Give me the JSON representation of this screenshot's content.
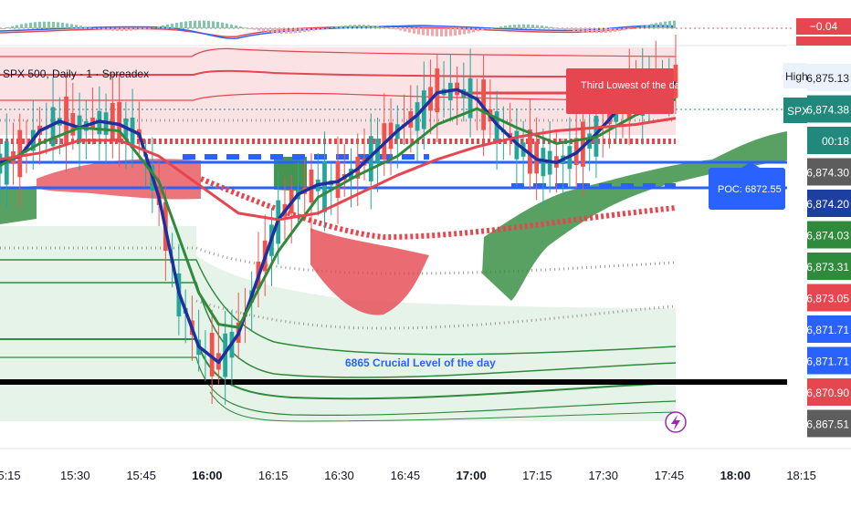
{
  "header": {
    "symbol_title": "SPX 500, Daily · 1 · Spreadex",
    "ticker_tag": "SPX",
    "high_tag": "High"
  },
  "indicator_value": "−0.04",
  "chart_data": {
    "type": "line",
    "title": "SPX 500, Daily · 1 · Spreadex",
    "xlabel": "",
    "ylabel": "",
    "x_ticks": [
      "5:15",
      "15:30",
      "15:45",
      "16:00",
      "16:15",
      "16:30",
      "16:45",
      "17:00",
      "17:15",
      "17:30",
      "17:45",
      "18:00",
      "18:15"
    ],
    "x_ticks_bold": [
      "16:00",
      "17:00",
      "18:00"
    ],
    "price_labels": [
      {
        "text": "6,875.13",
        "bg": "#eaf3fb",
        "fg": "#222222"
      },
      {
        "text": "6,874.38",
        "bg": "#21897b",
        "fg": "#ffffff"
      },
      {
        "text": "00:18",
        "bg": "#21897b",
        "fg": "#ffffff"
      },
      {
        "text": "6,874.30",
        "bg": "#5d5d5d",
        "fg": "#ffffff"
      },
      {
        "text": "6,874.20",
        "bg": "#1d3fa0",
        "fg": "#ffffff"
      },
      {
        "text": "6,874.03",
        "bg": "#2f8a3c",
        "fg": "#ffffff"
      },
      {
        "text": "6,873.31",
        "bg": "#2f8a3c",
        "fg": "#ffffff"
      },
      {
        "text": "6,873.05",
        "bg": "#e5464f",
        "fg": "#ffffff"
      },
      {
        "text": "6,871.71",
        "bg": "#2962ff",
        "fg": "#ffffff"
      },
      {
        "text": "6,871.71",
        "bg": "#2962ff",
        "fg": "#ffffff"
      },
      {
        "text": "6,870.90",
        "bg": "#e5464f",
        "fg": "#ffffff"
      },
      {
        "text": "6,867.51",
        "bg": "#5d5d5d",
        "fg": "#ffffff"
      }
    ],
    "annotations": {
      "third_lowest": "Third Lowest of the day",
      "poc": "POC: 6872.55",
      "crucial_level": "6865 Crucial Level of the day"
    },
    "series": [
      {
        "name": "",
        "color": "#1e2f9e",
        "x": [
          0,
          3,
          6,
          9,
          12,
          15,
          18,
          21,
          24,
          27,
          30,
          33,
          36,
          39,
          42,
          45,
          48,
          51,
          54,
          57,
          60,
          63,
          66,
          69,
          72,
          75,
          78,
          81,
          84,
          87,
          90,
          93,
          96,
          99,
          102
        ],
        "y": [
          6872.6,
          6872.8,
          6873.6,
          6873.9,
          6873.7,
          6873.9,
          6873.8,
          6873.5,
          6871.5,
          6868.5,
          6866.8,
          6866.3,
          6867.2,
          6869.0,
          6870.8,
          6871.6,
          6871.9,
          6872.0,
          6872.4,
          6873.0,
          6873.6,
          6874.1,
          6874.8,
          6874.9,
          6874.6,
          6873.8,
          6873.2,
          6872.7,
          6872.6,
          6872.9,
          6873.5,
          6874.2,
          6874.8,
          6875.1,
          6875.1
        ]
      },
      {
        "name": "",
        "color": "#2f8a3c",
        "x": [
          0,
          6,
          12,
          18,
          24,
          30,
          33,
          36,
          42,
          48,
          54,
          60,
          66,
          72,
          75,
          78,
          84,
          90,
          96,
          102
        ],
        "y": [
          6872.5,
          6873.2,
          6873.7,
          6873.6,
          6872.0,
          6868.5,
          6867.5,
          6867.4,
          6869.8,
          6871.5,
          6872.2,
          6872.8,
          6873.8,
          6874.3,
          6874.0,
          6873.7,
          6873.2,
          6873.4,
          6874.1,
          6874.6
        ]
      },
      {
        "name": "",
        "color": "#e5464f",
        "x": [
          0,
          6,
          12,
          18,
          24,
          30,
          36,
          42,
          48,
          54,
          60,
          66,
          72,
          78,
          84,
          90,
          96,
          102
        ],
        "y": [
          6872.7,
          6872.9,
          6873.3,
          6873.3,
          6872.8,
          6871.9,
          6871.0,
          6870.8,
          6871.0,
          6871.6,
          6872.2,
          6872.7,
          6873.1,
          6873.4,
          6873.6,
          6873.7,
          6873.8,
          6874.0
        ]
      }
    ],
    "levels": {
      "poc": 6872.55,
      "crucial": 6865
    }
  }
}
